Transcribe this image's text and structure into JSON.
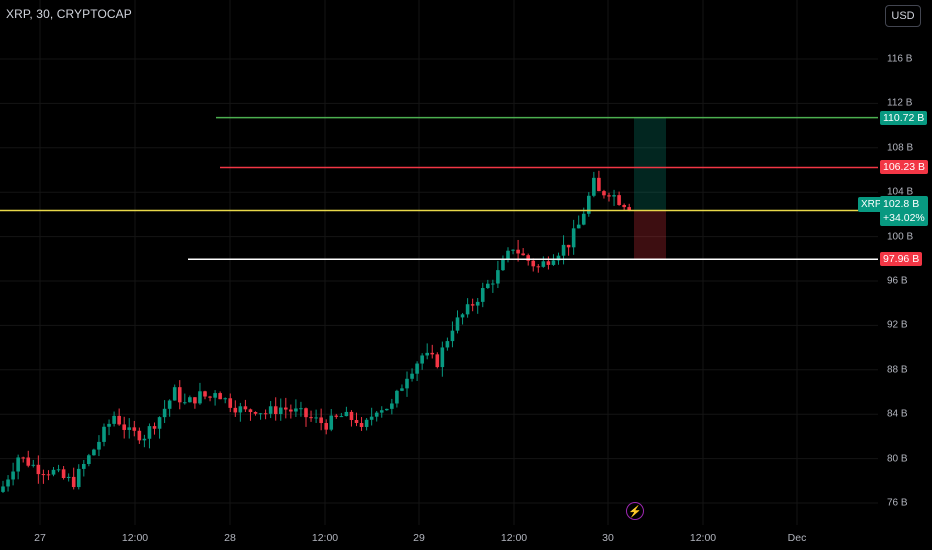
{
  "header": {
    "symbol": "XRP, 30, CRYPTOCAP"
  },
  "currency_button": {
    "label": "USD"
  },
  "colors": {
    "up": "#089981",
    "down": "#f23645",
    "target": "#4caf50",
    "stop": "#f23645",
    "entry": "#e8d84a",
    "support": "#ffffff"
  },
  "chart_data": {
    "type": "candlestick",
    "title": "XRP, 30, CRYPTOCAP",
    "ylim": [
      74,
      120
    ],
    "y_ticks": [
      76,
      80,
      84,
      88,
      92,
      96,
      100,
      104,
      108,
      112,
      116
    ],
    "y_tick_labels": [
      "76 B",
      "80 B",
      "84 B",
      "88 B",
      "92 B",
      "96 B",
      "100 B",
      "104 B",
      "108 B",
      "112 B",
      "116 B"
    ],
    "x_labels": [
      "27",
      "12:00",
      "28",
      "12:00",
      "29",
      "12:00",
      "30",
      "12:00",
      "Dec"
    ],
    "price_levels": [
      {
        "name": "target",
        "label": "110.72 B",
        "value": 110.72
      },
      {
        "name": "stop",
        "label": "106.23 B",
        "value": 106.23
      },
      {
        "name": "support",
        "label": "97.96 B",
        "value": 97.96
      },
      {
        "name": "entry",
        "value": 102.35
      }
    ],
    "last_price": {
      "symbol": "XRP",
      "price": "102.8 B",
      "change": "+34.02%",
      "value": 102.8
    },
    "close_path": [
      [
        0,
        77.5
      ],
      [
        3,
        80.2
      ],
      [
        7,
        79.1
      ],
      [
        10,
        78.8
      ],
      [
        12,
        78.2
      ],
      [
        14,
        77.9
      ],
      [
        16,
        79.4
      ],
      [
        19,
        81.6
      ],
      [
        22,
        83.9
      ],
      [
        25,
        82.3
      ],
      [
        28,
        82.1
      ],
      [
        31,
        83.8
      ],
      [
        34,
        86.0
      ],
      [
        36,
        84.9
      ],
      [
        39,
        85.7
      ],
      [
        41,
        85.5
      ],
      [
        42,
        86.2
      ],
      [
        44,
        85.3
      ],
      [
        46,
        84.7
      ],
      [
        48,
        84.2
      ],
      [
        50,
        84.5
      ],
      [
        52,
        84.1
      ],
      [
        55,
        84.6
      ],
      [
        58,
        84.2
      ],
      [
        61,
        83.6
      ],
      [
        64,
        83.1
      ],
      [
        67,
        83.8
      ],
      [
        70,
        83.5
      ],
      [
        71,
        82.4
      ],
      [
        74,
        84.6
      ],
      [
        77,
        84.7
      ],
      [
        80,
        87.6
      ],
      [
        83,
        89.3
      ],
      [
        86,
        88.7
      ],
      [
        89,
        91.9
      ],
      [
        92,
        93.4
      ],
      [
        95,
        95.1
      ],
      [
        98,
        96.7
      ],
      [
        101,
        99.1
      ],
      [
        103,
        98.2
      ],
      [
        106,
        97.2
      ],
      [
        109,
        98.4
      ],
      [
        112,
        99.4
      ],
      [
        114,
        101.0
      ],
      [
        117,
        104.8
      ],
      [
        118,
        103.9
      ],
      [
        120,
        104.1
      ],
      [
        122,
        103.3
      ],
      [
        124,
        102.8
      ]
    ]
  }
}
